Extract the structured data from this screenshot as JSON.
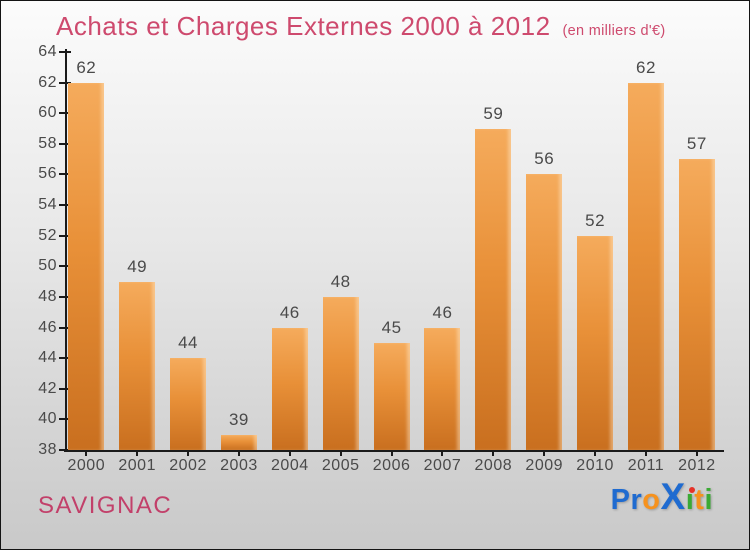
{
  "header": {
    "title": "Achats et Charges Externes 2000 à 2012",
    "subtitle": "(en milliers d'€)",
    "title_color": "#CE4A6E"
  },
  "chart_data": {
    "type": "bar",
    "title": "Achats et Charges Externes 2000 à 2012",
    "unit_note": "en milliers d'€",
    "categories": [
      "2000",
      "2001",
      "2002",
      "2003",
      "2004",
      "2005",
      "2006",
      "2007",
      "2008",
      "2009",
      "2010",
      "2011",
      "2012"
    ],
    "values": [
      62,
      49,
      44,
      39,
      46,
      48,
      45,
      46,
      59,
      56,
      52,
      62,
      57
    ],
    "ylim": [
      38,
      64
    ],
    "ytick_step": 2,
    "grid": false,
    "legend": "none",
    "bar_color_top": "#F5AB5C",
    "bar_color_mid": "#E89038",
    "bar_color_bottom": "#C96F1F",
    "value_label_color": "#4a4a4a",
    "axis_color": "#1a1a1a"
  },
  "footer": {
    "org": "SAVIGNAC",
    "org_color": "#C2406A",
    "logo": {
      "text": "Proxiti",
      "letters": [
        {
          "ch": "P",
          "color": "#1F6BD0"
        },
        {
          "ch": "r",
          "color": "#1F6BD0"
        },
        {
          "ch": "o",
          "color": "#F6921E"
        },
        {
          "ch": "X",
          "color": "#1F6BD0",
          "big": true
        },
        {
          "ch": "i",
          "color": "#3BAA35",
          "dot_color": "#E53228"
        },
        {
          "ch": "t",
          "color": "#F6921E"
        },
        {
          "ch": "i",
          "color": "#3BAA35"
        }
      ]
    }
  }
}
